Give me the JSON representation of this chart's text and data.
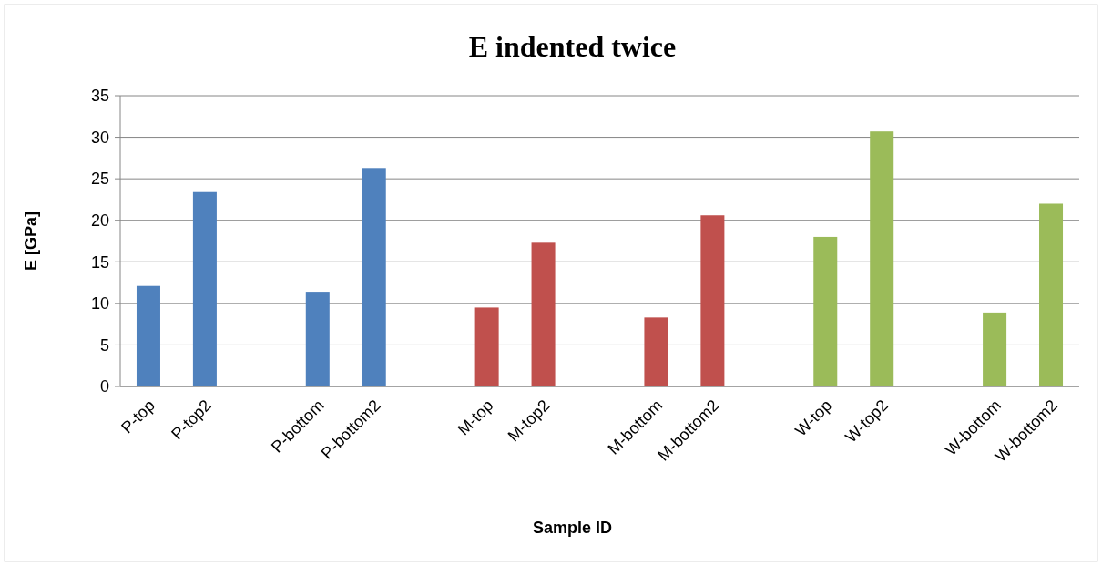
{
  "chart_data": {
    "type": "bar",
    "title": "E indented twice",
    "xlabel": "Sample ID",
    "ylabel": "E [GPa]",
    "categories": [
      "P-top",
      "P-top2",
      null,
      "P-bottom",
      "P-bottom2",
      null,
      "M-top",
      "M-top2",
      null,
      "M-bottom",
      "M-bottom2",
      null,
      "W-top",
      "W-top2",
      null,
      "W-bottom",
      "W-bottom2"
    ],
    "values": [
      12.1,
      23.4,
      null,
      11.4,
      26.3,
      null,
      9.5,
      17.3,
      null,
      8.3,
      20.6,
      null,
      18.0,
      30.7,
      null,
      8.9,
      22.0
    ],
    "colors": [
      "#4f81bd",
      "#4f81bd",
      null,
      "#4f81bd",
      "#4f81bd",
      null,
      "#c0504d",
      "#c0504d",
      null,
      "#c0504d",
      "#c0504d",
      null,
      "#9bbb59",
      "#9bbb59",
      null,
      "#9bbb59",
      "#9bbb59"
    ],
    "ylim": [
      0,
      35
    ],
    "yticks": [
      0,
      5,
      10,
      15,
      20,
      25,
      30,
      35
    ],
    "grid": "y"
  }
}
